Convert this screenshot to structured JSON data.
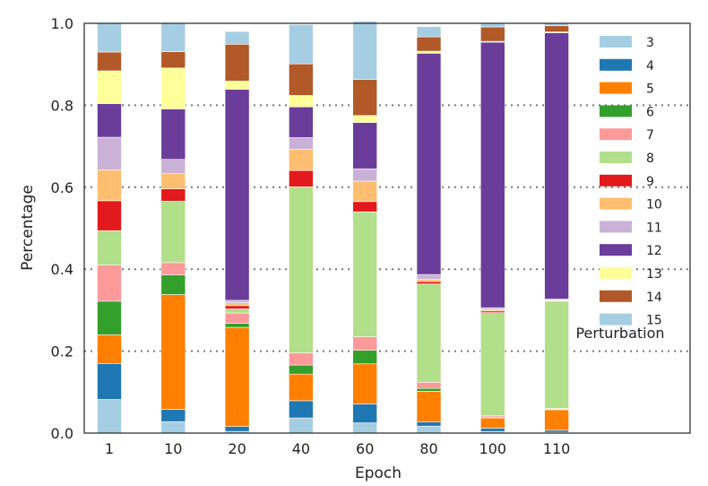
{
  "chart_data": {
    "type": "bar",
    "stacked": true,
    "xlabel": "Epoch",
    "ylabel": "Percentage",
    "ylim": [
      0,
      1.0
    ],
    "yticks": [
      "0.0",
      "0.2",
      "0.4",
      "0.6",
      "0.8",
      "1.0"
    ],
    "grid": "horizontal dotted",
    "categories": [
      "1",
      "10",
      "20",
      "40",
      "60",
      "80",
      "100",
      "110"
    ],
    "legend": {
      "title": "Perturbation",
      "placement": "right"
    },
    "series": [
      {
        "name": "3",
        "color": "#a6cee3",
        "values": [
          0.082,
          0.028,
          0.004,
          0.037,
          0.025,
          0.017,
          0.004,
          0.002
        ]
      },
      {
        "name": "4",
        "color": "#1f78b4",
        "values": [
          0.088,
          0.03,
          0.012,
          0.042,
          0.046,
          0.01,
          0.008,
          0.005
        ]
      },
      {
        "name": "5",
        "color": "#ff7f00",
        "values": [
          0.07,
          0.28,
          0.242,
          0.065,
          0.098,
          0.075,
          0.025,
          0.05
        ]
      },
      {
        "name": "6",
        "color": "#33a02c",
        "values": [
          0.082,
          0.048,
          0.01,
          0.022,
          0.033,
          0.007,
          0.002,
          0.001
        ]
      },
      {
        "name": "7",
        "color": "#fb9a99",
        "values": [
          0.088,
          0.03,
          0.025,
          0.03,
          0.033,
          0.015,
          0.003,
          0.002
        ]
      },
      {
        "name": "8",
        "color": "#b2df8a",
        "values": [
          0.084,
          0.15,
          0.01,
          0.405,
          0.305,
          0.24,
          0.252,
          0.262
        ]
      },
      {
        "name": "9",
        "color": "#e31a1c",
        "values": [
          0.073,
          0.03,
          0.008,
          0.04,
          0.025,
          0.006,
          0.004,
          0.001
        ]
      },
      {
        "name": "10",
        "color": "#fdbf6f",
        "values": [
          0.075,
          0.037,
          0.007,
          0.052,
          0.05,
          0.005,
          0.004,
          0.002
        ]
      },
      {
        "name": "11",
        "color": "#cab2d6",
        "values": [
          0.08,
          0.035,
          0.006,
          0.028,
          0.03,
          0.012,
          0.004,
          0.002
        ]
      },
      {
        "name": "12",
        "color": "#6a3d9a",
        "values": [
          0.082,
          0.123,
          0.515,
          0.075,
          0.113,
          0.54,
          0.648,
          0.65
        ]
      },
      {
        "name": "13",
        "color": "#ffff99",
        "values": [
          0.08,
          0.1,
          0.02,
          0.028,
          0.017,
          0.005,
          0.002,
          0.002
        ]
      },
      {
        "name": "14",
        "color": "#b15928",
        "values": [
          0.046,
          0.04,
          0.09,
          0.077,
          0.088,
          0.035,
          0.035,
          0.015
        ]
      },
      {
        "name": "15",
        "color": "#a6cee3",
        "values": [
          0.07,
          0.069,
          0.031,
          0.096,
          0.142,
          0.025,
          0.009,
          0.006
        ]
      }
    ]
  }
}
